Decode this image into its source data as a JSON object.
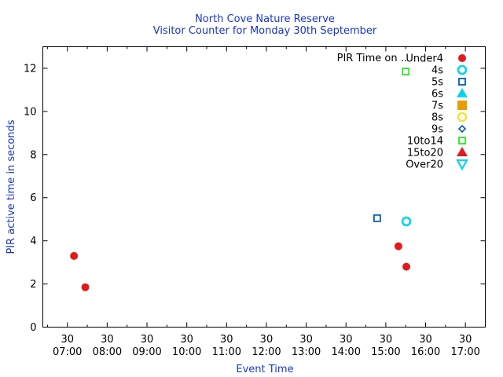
{
  "chart_data": {
    "type": "scatter",
    "title": "North Cove Nature Reserve",
    "subtitle": "Visitor Counter for Monday 30th September",
    "xlabel": "Event Time",
    "ylabel": "PIR active time in seconds",
    "xlim": [
      "06:23",
      "17:30"
    ],
    "ylim": [
      0,
      13
    ],
    "x_major_ticks": [
      {
        "time": "07:00",
        "label": "07:00"
      },
      {
        "time": "08:00",
        "label": "08:00"
      },
      {
        "time": "09:00",
        "label": "09:00"
      },
      {
        "time": "10:00",
        "label": "10:00"
      },
      {
        "time": "11:00",
        "label": "11:00"
      },
      {
        "time": "12:00",
        "label": "12:00"
      },
      {
        "time": "13:00",
        "label": "13:00"
      },
      {
        "time": "14:00",
        "label": "14:00"
      },
      {
        "time": "15:00",
        "label": "15:00"
      },
      {
        "time": "16:00",
        "label": "16:00"
      },
      {
        "time": "17:00",
        "label": "17:00"
      }
    ],
    "x_minute_label": "30",
    "y_ticks": [
      0,
      2,
      4,
      6,
      8,
      10,
      12
    ],
    "legend_title": "PIR Time on ..",
    "legend_position": "top-right",
    "series": [
      {
        "name": "Under4",
        "marker": "circle-filled",
        "color": "#e31a1c",
        "points": [
          [
            "07:10",
            3.3
          ],
          [
            "07:27",
            1.85
          ],
          [
            "15:19",
            3.75
          ],
          [
            "15:31",
            2.8
          ]
        ]
      },
      {
        "name": "4s",
        "marker": "circle-open",
        "color": "#00d5ec",
        "points": [
          [
            "15:31",
            4.9
          ]
        ]
      },
      {
        "name": "5s",
        "marker": "square-open",
        "color": "#0060ad",
        "points": [
          [
            "14:47",
            5.05
          ]
        ]
      },
      {
        "name": "6s",
        "marker": "triangle-filled",
        "color": "#00d5ec",
        "points": []
      },
      {
        "name": "7s",
        "marker": "square-filled",
        "color": "#e69f00",
        "points": []
      },
      {
        "name": "8s",
        "marker": "circle-open",
        "color": "#f0e442",
        "points": []
      },
      {
        "name": "9s",
        "marker": "diamond-open",
        "color": "#0060ad",
        "points": []
      },
      {
        "name": "10to14",
        "marker": "square-open",
        "color": "#2ee622",
        "points": [
          [
            "15:30",
            11.85
          ]
        ]
      },
      {
        "name": "15to20",
        "marker": "triangle-filled",
        "color": "#e31a1c",
        "points": []
      },
      {
        "name": "Over20",
        "marker": "triangle-down-open",
        "color": "#00d5ec",
        "points": []
      }
    ]
  }
}
